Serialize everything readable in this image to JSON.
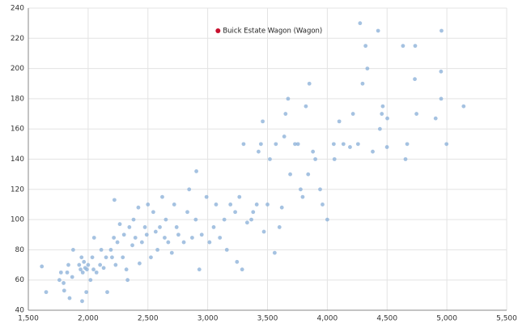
{
  "chart_data": {
    "type": "scatter",
    "color": "#8fb3d9",
    "grid": true,
    "x": [
      1613,
      1649,
      1760,
      1773,
      1795,
      1800,
      1825,
      1835,
      1845,
      1867,
      1875,
      1925,
      1937,
      1945,
      1950,
      1955,
      1965,
      1975,
      1985,
      1990,
      2000,
      2020,
      2035,
      2045,
      2050,
      2070,
      2100,
      2110,
      2130,
      2150,
      2160,
      2190,
      2200,
      2215,
      2220,
      2230,
      2245,
      2265,
      2290,
      2300,
      2320,
      2330,
      2345,
      2370,
      2380,
      2395,
      2420,
      2430,
      2450,
      2475,
      2490,
      2500,
      2525,
      2545,
      2565,
      2580,
      2600,
      2620,
      2640,
      2650,
      2670,
      2700,
      2720,
      2740,
      2755,
      2800,
      2830,
      2845,
      2870,
      2900,
      2905,
      2930,
      2950,
      2990,
      3015,
      3050,
      3070,
      3102,
      3139,
      3160,
      3190,
      3230,
      3245,
      3265,
      3288,
      3300,
      3330,
      3365,
      3380,
      3410,
      3425,
      3445,
      3460,
      3470,
      3500,
      3520,
      3560,
      3570,
      3600,
      3620,
      3640,
      3651,
      3672,
      3690,
      3730,
      3755,
      3777,
      3794,
      3821,
      3840,
      3850,
      3880,
      3900,
      3940,
      3960,
      4000,
      4054,
      4060,
      4100,
      4135,
      4190,
      4215,
      4257,
      4274,
      4295,
      4320,
      4335,
      4380,
      4425,
      4440,
      4456,
      4464,
      4499,
      4502,
      4633,
      4654,
      4668,
      4732,
      4735,
      4746,
      4906,
      4951,
      4955,
      4952,
      4997,
      5140
    ],
    "values": [
      69,
      52,
      60,
      65,
      58,
      53,
      65,
      70,
      48,
      62,
      80,
      70,
      67,
      75,
      46,
      65,
      72,
      68,
      52,
      67,
      70,
      60,
      75,
      67,
      88,
      65,
      70,
      80,
      68,
      75,
      52,
      80,
      75,
      88,
      113,
      70,
      85,
      97,
      75,
      90,
      67,
      60,
      95,
      83,
      100,
      88,
      108,
      71,
      85,
      95,
      90,
      110,
      75,
      105,
      92,
      80,
      95,
      115,
      88,
      100,
      85,
      78,
      110,
      95,
      90,
      85,
      105,
      120,
      88,
      100,
      132,
      67,
      90,
      115,
      85,
      95,
      110,
      88,
      100,
      80,
      110,
      105,
      72,
      115,
      67,
      150,
      98,
      100,
      105,
      110,
      145,
      150,
      165,
      92,
      110,
      140,
      78,
      150,
      95,
      108,
      155,
      170,
      180,
      130,
      150,
      150,
      120,
      115,
      175,
      130,
      190,
      145,
      140,
      120,
      110,
      100,
      150,
      140,
      165,
      150,
      148,
      170,
      150,
      230,
      190,
      215,
      200,
      145,
      225,
      160,
      170,
      175,
      148,
      167,
      215,
      140,
      150,
      193,
      215,
      170,
      167,
      198,
      225,
      180,
      150,
      175
    ],
    "highlight": {
      "label": "Buick Estate Wagon (Wagon)",
      "x": 3086,
      "y": 225,
      "color": "#c8102e"
    },
    "xlim": [
      1500,
      5500
    ],
    "xticks": [
      {
        "value": 1500,
        "label": "1,500"
      },
      {
        "value": 2000,
        "label": "2,000"
      },
      {
        "value": 2500,
        "label": "2,500"
      },
      {
        "value": 3000,
        "label": "3,000"
      },
      {
        "value": 3500,
        "label": "3,500"
      },
      {
        "value": 4000,
        "label": "4,000"
      },
      {
        "value": 4500,
        "label": "4,500"
      },
      {
        "value": 5000,
        "label": "5,000"
      },
      {
        "value": 5500,
        "label": "5,500"
      }
    ],
    "ylim": [
      40,
      240
    ],
    "yticks": [
      40,
      60,
      80,
      100,
      120,
      140,
      160,
      180,
      200,
      220,
      240
    ]
  }
}
